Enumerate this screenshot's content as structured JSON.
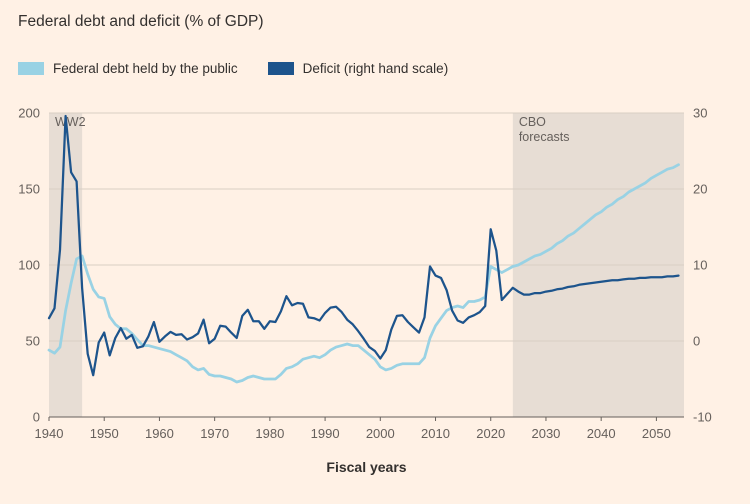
{
  "title": "Federal debt and deficit (% of GDP)",
  "xlabel": "Fiscal years",
  "colors": {
    "background": "#FFF1E5",
    "band": "#E7DDD4",
    "grid": "#D9CFC4",
    "axis": "#66605C",
    "tick_text": "#66605C",
    "band_text": "#66605C",
    "title_text": "#33302E",
    "debt_line": "#99D2E4",
    "deficit_line": "#1D548C"
  },
  "legend": [
    {
      "label": "Federal debt held by the public",
      "color": "#99D2E4"
    },
    {
      "label": "Deficit (right hand scale)",
      "color": "#1D548C"
    }
  ],
  "chart_data": {
    "type": "line",
    "title": "Federal debt and deficit (% of GDP)",
    "xlabel": "Fiscal years",
    "x_range": [
      1940,
      2055
    ],
    "x_ticks": [
      1940,
      1950,
      1960,
      1970,
      1980,
      1990,
      2000,
      2010,
      2020,
      2030,
      2040,
      2050
    ],
    "left_axis": {
      "range": [
        0,
        200
      ],
      "ticks": [
        0,
        50,
        100,
        150,
        200
      ]
    },
    "right_axis": {
      "range": [
        -10,
        30
      ],
      "ticks": [
        -10,
        0,
        10,
        20,
        30
      ]
    },
    "bands": [
      {
        "label_lines": [
          "WW2"
        ],
        "from": 1940,
        "to": 1946
      },
      {
        "label_lines": [
          "CBO",
          "forecasts"
        ],
        "from": 2024,
        "to": 2055
      }
    ],
    "series": [
      {
        "name": "Federal debt held by the public",
        "slug": "debt-line",
        "axis": "left",
        "color": "#99D2E4",
        "width": 2.75,
        "x_start": 1940,
        "values": [
          44,
          42,
          46,
          70,
          88,
          104,
          106,
          94,
          84,
          79,
          78,
          66,
          61,
          58,
          58,
          55,
          51,
          47,
          47,
          46,
          45,
          44,
          43,
          41,
          39,
          37,
          33,
          31,
          32,
          28,
          27,
          27,
          26,
          25,
          23,
          24,
          26,
          27,
          26,
          25,
          25,
          25,
          28,
          32,
          33,
          35,
          38,
          39,
          40,
          39,
          41,
          44,
          46,
          47,
          48,
          47,
          47,
          44,
          41,
          38,
          33,
          31,
          32,
          34,
          35,
          35,
          35,
          35,
          39,
          52,
          60,
          65,
          70,
          72,
          73,
          72,
          76,
          76,
          77,
          79,
          99,
          97,
          95,
          97,
          99,
          100,
          102,
          104,
          106,
          107,
          109,
          111,
          114,
          116,
          119,
          121,
          124,
          127,
          130,
          133,
          135,
          138,
          140,
          143,
          145,
          148,
          150,
          152,
          154,
          157,
          159,
          161,
          163,
          164,
          166
        ]
      },
      {
        "name": "Deficit (right hand scale)",
        "slug": "deficit-line",
        "axis": "right",
        "color": "#1D548C",
        "width": 2.25,
        "x_start": 1940,
        "values": [
          3.0,
          4.3,
          12.0,
          29.6,
          22.2,
          21.0,
          7.0,
          -1.7,
          -4.5,
          -0.2,
          1.1,
          -1.9,
          0.4,
          1.7,
          0.3,
          0.8,
          -0.9,
          -0.7,
          0.6,
          2.5,
          -0.1,
          0.6,
          1.2,
          0.8,
          0.9,
          0.2,
          0.5,
          1.0,
          2.8,
          -0.3,
          0.3,
          2.0,
          1.9,
          1.1,
          0.4,
          3.3,
          4.1,
          2.6,
          2.6,
          1.6,
          2.6,
          2.5,
          3.9,
          5.9,
          4.7,
          5.0,
          4.9,
          3.1,
          3.0,
          2.7,
          3.7,
          4.4,
          4.5,
          3.8,
          2.8,
          2.2,
          1.3,
          0.3,
          -0.8,
          -1.3,
          -2.3,
          -1.2,
          1.5,
          3.3,
          3.4,
          2.5,
          1.8,
          1.1,
          3.1,
          9.8,
          8.6,
          8.3,
          6.7,
          4.0,
          2.7,
          2.4,
          3.1,
          3.4,
          3.8,
          4.6,
          14.7,
          11.9,
          5.4,
          6.2,
          7.0,
          6.5,
          6.1,
          6.1,
          6.3,
          6.3,
          6.5,
          6.6,
          6.8,
          6.9,
          7.1,
          7.2,
          7.4,
          7.5,
          7.6,
          7.7,
          7.8,
          7.9,
          8.0,
          8.0,
          8.1,
          8.2,
          8.2,
          8.3,
          8.3,
          8.4,
          8.4,
          8.4,
          8.5,
          8.5,
          8.6
        ]
      }
    ]
  }
}
